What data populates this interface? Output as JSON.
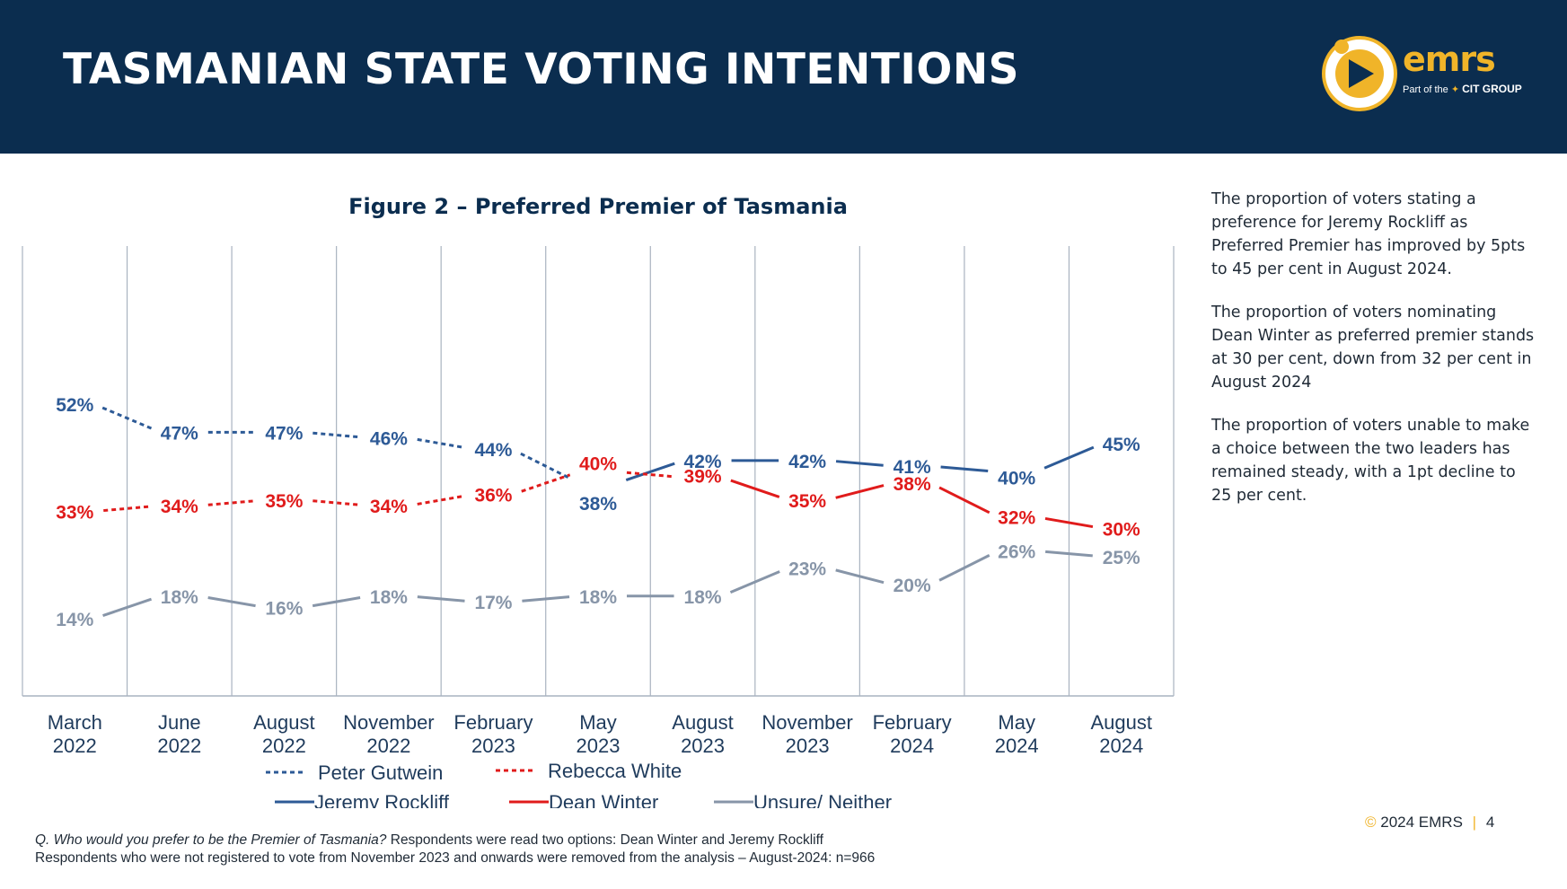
{
  "header": {
    "title": "TASMANIAN STATE VOTING INTENTIONS",
    "logo_word": "emrs",
    "logo_sub_prefix": "Part of the",
    "logo_sub_group": "CIT GROUP"
  },
  "colors": {
    "header_bg": "#0b2d4f",
    "accent": "#f0b429",
    "blue": "#2d5a96",
    "red": "#e01b1b",
    "grey": "#8795a8"
  },
  "chart_data": {
    "type": "line",
    "title": "Figure 2 – Preferred Premier of Tasmania",
    "categories": [
      [
        "March",
        "2022"
      ],
      [
        "June",
        "2022"
      ],
      [
        "August",
        "2022"
      ],
      [
        "November",
        "2022"
      ],
      [
        "February",
        "2023"
      ],
      [
        "May",
        "2023"
      ],
      [
        "August",
        "2023"
      ],
      [
        "November",
        "2023"
      ],
      [
        "February",
        "2024"
      ],
      [
        "May",
        "2024"
      ],
      [
        "August",
        "2024"
      ]
    ],
    "ylim": [
      0,
      100
    ],
    "grid": "vertical",
    "legend_position": "bottom",
    "series": [
      {
        "name": "Peter Gutwein",
        "color": "#2d5a96",
        "dash": true,
        "values": [
          52,
          47,
          47,
          46,
          44,
          38,
          null,
          null,
          null,
          null,
          null
        ]
      },
      {
        "name": "Jeremy Rockliff",
        "color": "#2d5a96",
        "dash": false,
        "values": [
          null,
          null,
          null,
          null,
          null,
          38,
          42,
          42,
          41,
          40,
          45
        ]
      },
      {
        "name": "Rebecca White",
        "color": "#e01b1b",
        "dash": true,
        "values": [
          33,
          34,
          35,
          34,
          36,
          40,
          39,
          null,
          null,
          null,
          null
        ]
      },
      {
        "name": "Dean Winter",
        "color": "#e01b1b",
        "dash": false,
        "values": [
          null,
          null,
          null,
          null,
          null,
          null,
          39,
          35,
          38,
          32,
          30
        ]
      },
      {
        "name": "Unsure/ Neither",
        "color": "#8795a8",
        "dash": false,
        "values": [
          14,
          18,
          16,
          18,
          17,
          18,
          18,
          23,
          20,
          26,
          25
        ]
      }
    ],
    "labels": {
      "blue": [
        "52%",
        "47%",
        "47%",
        "46%",
        "44%",
        "38%",
        "42%",
        "42%",
        "41%",
        "40%",
        "45%"
      ],
      "red": [
        "33%",
        "34%",
        "35%",
        "34%",
        "36%",
        "40%",
        "39%",
        "35%",
        "38%",
        "32%",
        "30%"
      ],
      "grey": [
        "14%",
        "18%",
        "16%",
        "18%",
        "17%",
        "18%",
        "18%",
        "23%",
        "20%",
        "26%",
        "25%"
      ]
    },
    "legend": [
      {
        "name": "Peter Gutwein",
        "color": "#2d5a96",
        "dash": true
      },
      {
        "name": "Rebecca White",
        "color": "#e01b1b",
        "dash": true
      },
      {
        "name": "Jeremy Rockliff",
        "color": "#2d5a96",
        "dash": false
      },
      {
        "name": "Dean Winter",
        "color": "#e01b1b",
        "dash": false
      },
      {
        "name": "Unsure/ Neither",
        "color": "#8795a8",
        "dash": false
      }
    ]
  },
  "side_text": [
    "The proportion of voters stating a preference for Jeremy Rockliff as Preferred Premier has improved by 5pts to 45 per cent in August 2024.",
    "The proportion of voters nominating Dean Winter as preferred premier stands at 30 per cent, down from 32 per cent in August 2024",
    "The proportion of voters unable to make a choice between the two leaders has remained steady, with a 1pt decline to 25 per cent."
  ],
  "footnote": {
    "question": "Q. Who would you prefer to be the Premier of Tasmania?",
    "line1_rest": " Respondents were read two options: Dean Winter and Jeremy Rockliff",
    "line2": "Respondents who were not registered to vote from November 2023 and onwards were removed from the analysis – August-2024: n=966"
  },
  "footer": {
    "copyright": "2024 EMRS",
    "page_number": "4"
  }
}
